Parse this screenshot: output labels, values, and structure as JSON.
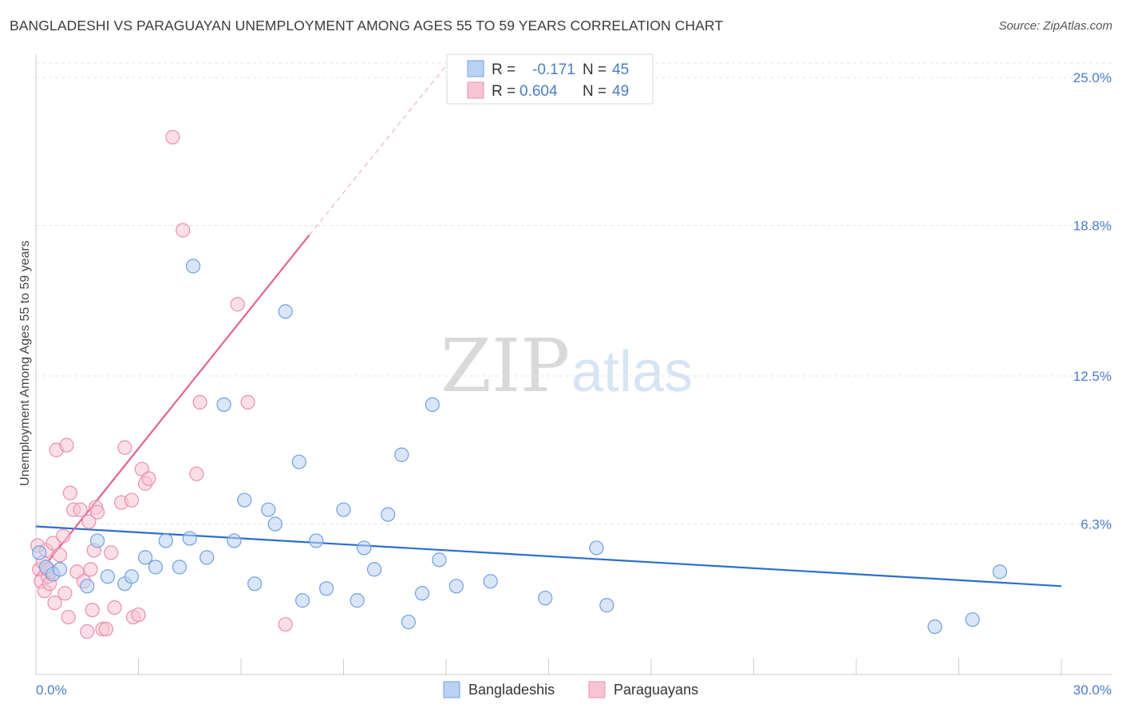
{
  "header": {
    "title": "BANGLADESHI VS PARAGUAYAN UNEMPLOYMENT AMONG AGES 55 TO 59 YEARS CORRELATION CHART",
    "source": "Source: ZipAtlas.com"
  },
  "watermark": {
    "zip": "ZIP",
    "atlas": "atlas"
  },
  "legend": {
    "series": [
      {
        "r_label": "R = ",
        "r_value": "-0.171",
        "n_label": "N = ",
        "n_value": "45"
      },
      {
        "r_label": "R = ",
        "r_value": "0.604",
        "n_label": "N = ",
        "n_value": "49"
      }
    ]
  },
  "bottom_legend": {
    "bangladeshis": "Bangladeshis",
    "paraguayans": "Paraguayans"
  },
  "colors": {
    "blue_fill": "#b9d1f2",
    "blue_stroke": "#6f9fe0",
    "blue_line": "#2a6fcc",
    "pink_fill": "#f8c4d4",
    "pink_stroke": "#ec8eac",
    "pink_line": "#e4638f",
    "tick_text": "#4a7cc8",
    "grid": "#e3e3e3"
  },
  "chart_data": {
    "type": "scatter",
    "title": "BANGLADESHI VS PARAGUAYAN UNEMPLOYMENT AMONG AGES 55 TO 59 YEARS CORRELATION CHART",
    "xlabel": "",
    "ylabel": "Unemployment Among Ages 55 to 59 years",
    "xlim": [
      0,
      30
    ],
    "ylim": [
      0,
      25
    ],
    "x_tick_labels": [
      "0.0%",
      "30.0%"
    ],
    "y_ticks": [
      6.3,
      12.5,
      18.8,
      25.0
    ],
    "y_tick_labels": [
      "6.3%",
      "12.5%",
      "18.8%",
      "25.0%"
    ],
    "grid": true,
    "legend_position": "top-center",
    "series": [
      {
        "name": "Bangladeshis",
        "R": -0.171,
        "N": 45,
        "trend": {
          "x": [
            0,
            30
          ],
          "y": [
            6.2,
            3.7
          ]
        },
        "points": [
          [
            0.1,
            5.1
          ],
          [
            0.3,
            4.5
          ],
          [
            0.5,
            4.2
          ],
          [
            0.7,
            4.4
          ],
          [
            1.5,
            3.7
          ],
          [
            1.8,
            5.6
          ],
          [
            2.1,
            4.1
          ],
          [
            2.6,
            3.8
          ],
          [
            2.8,
            4.1
          ],
          [
            3.2,
            4.9
          ],
          [
            3.5,
            4.5
          ],
          [
            3.8,
            5.6
          ],
          [
            4.2,
            4.5
          ],
          [
            4.5,
            5.7
          ],
          [
            4.6,
            17.1
          ],
          [
            5.0,
            4.9
          ],
          [
            5.5,
            11.3
          ],
          [
            5.8,
            5.6
          ],
          [
            6.1,
            7.3
          ],
          [
            6.4,
            3.8
          ],
          [
            6.8,
            6.9
          ],
          [
            7.0,
            6.3
          ],
          [
            7.3,
            15.2
          ],
          [
            7.7,
            8.9
          ],
          [
            7.8,
            3.1
          ],
          [
            8.2,
            5.6
          ],
          [
            8.5,
            3.6
          ],
          [
            9.0,
            6.9
          ],
          [
            9.4,
            3.1
          ],
          [
            9.6,
            5.3
          ],
          [
            9.9,
            4.4
          ],
          [
            10.3,
            6.7
          ],
          [
            10.7,
            9.2
          ],
          [
            10.9,
            2.2
          ],
          [
            11.3,
            3.4
          ],
          [
            11.6,
            11.3
          ],
          [
            11.8,
            4.8
          ],
          [
            12.3,
            3.7
          ],
          [
            13.3,
            3.9
          ],
          [
            14.9,
            3.2
          ],
          [
            16.4,
            5.3
          ],
          [
            16.7,
            2.9
          ],
          [
            26.3,
            2.0
          ],
          [
            27.4,
            2.3
          ],
          [
            28.2,
            4.3
          ]
        ]
      },
      {
        "name": "Paraguayans",
        "R": 0.604,
        "N": 49,
        "trend": {
          "x": [
            0,
            8.0
          ],
          "y": [
            4.1,
            18.4
          ]
        },
        "trend_extension": {
          "x": [
            8.0,
            12.0
          ],
          "y": [
            18.4,
            25.5
          ]
        },
        "points": [
          [
            0.05,
            5.4
          ],
          [
            0.1,
            4.4
          ],
          [
            0.15,
            3.9
          ],
          [
            0.2,
            4.7
          ],
          [
            0.25,
            3.5
          ],
          [
            0.3,
            5.2
          ],
          [
            0.35,
            4.1
          ],
          [
            0.4,
            3.8
          ],
          [
            0.45,
            4.3
          ],
          [
            0.5,
            5.5
          ],
          [
            0.55,
            3.0
          ],
          [
            0.6,
            9.4
          ],
          [
            0.7,
            5.0
          ],
          [
            0.8,
            5.8
          ],
          [
            0.85,
            3.4
          ],
          [
            0.9,
            9.6
          ],
          [
            0.95,
            2.4
          ],
          [
            1.0,
            7.6
          ],
          [
            1.1,
            6.9
          ],
          [
            1.2,
            4.3
          ],
          [
            1.3,
            6.9
          ],
          [
            1.4,
            3.9
          ],
          [
            1.5,
            1.8
          ],
          [
            1.55,
            6.4
          ],
          [
            1.6,
            4.4
          ],
          [
            1.65,
            2.7
          ],
          [
            1.7,
            5.2
          ],
          [
            1.75,
            7.0
          ],
          [
            1.8,
            6.8
          ],
          [
            1.95,
            1.9
          ],
          [
            2.05,
            1.9
          ],
          [
            2.2,
            5.1
          ],
          [
            2.3,
            2.8
          ],
          [
            2.5,
            7.2
          ],
          [
            2.6,
            9.5
          ],
          [
            2.8,
            7.3
          ],
          [
            2.85,
            2.4
          ],
          [
            3.0,
            2.5
          ],
          [
            3.1,
            8.6
          ],
          [
            3.2,
            8.0
          ],
          [
            3.3,
            8.2
          ],
          [
            4.0,
            22.5
          ],
          [
            4.3,
            18.6
          ],
          [
            4.7,
            8.4
          ],
          [
            4.8,
            11.4
          ],
          [
            5.9,
            15.5
          ],
          [
            6.2,
            11.4
          ],
          [
            7.3,
            2.1
          ],
          [
            0.35,
            4.4
          ]
        ]
      }
    ]
  }
}
